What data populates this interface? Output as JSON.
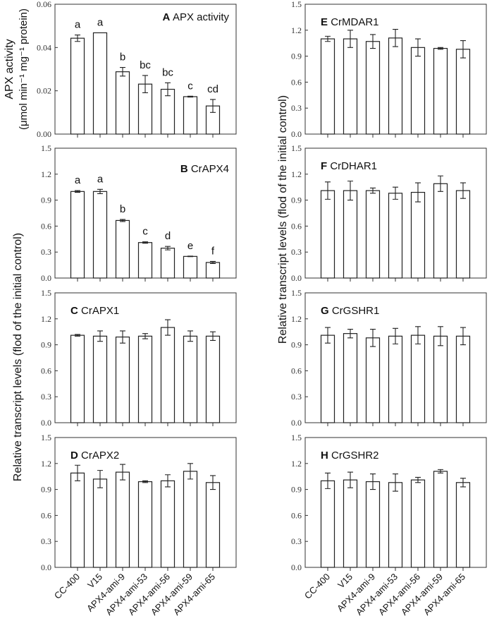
{
  "chart_data": [
    {
      "id": "A",
      "type": "bar",
      "panel_letter": "A",
      "title": "APX activity",
      "ylabel_lines": [
        "APX activity",
        "(μmol min⁻¹ mg⁻¹ protein)"
      ],
      "ylim": [
        0,
        0.06
      ],
      "yticks": [
        "0.00",
        "0.02",
        "0.04",
        "0.06"
      ],
      "categories": [
        "CC-400",
        "V15",
        "APX4-ami-9",
        "APX4-ami-53",
        "APX4-ami-56",
        "APX4-ami-59",
        "APX4-ami-65"
      ],
      "values": [
        0.0443,
        0.0468,
        0.0288,
        0.0231,
        0.0207,
        0.0173,
        0.013
      ],
      "errors": [
        0.0015,
        0,
        0.002,
        0.004,
        0.003,
        0.0002,
        0.003
      ],
      "letters": [
        "a",
        "a",
        "b",
        "bc",
        "bc",
        "c",
        "cd"
      ]
    },
    {
      "id": "B",
      "type": "bar",
      "panel_letter": "B",
      "title": "CrAPX4",
      "ylim": [
        0,
        1.5
      ],
      "yticks": [
        "0.0",
        "0.3",
        "0.6",
        "0.9",
        "1.2",
        "1.5"
      ],
      "values": [
        1.0,
        1.0,
        0.665,
        0.41,
        0.345,
        0.25,
        0.18
      ],
      "errors": [
        0.01,
        0.025,
        0.012,
        0.008,
        0.02,
        0.003,
        0.012
      ],
      "letters": [
        "a",
        "a",
        "b",
        "c",
        "d",
        "e",
        "f"
      ]
    },
    {
      "id": "C",
      "type": "bar",
      "panel_letter": "C",
      "title": "CrAPX1",
      "ylim": [
        0,
        1.5
      ],
      "yticks": [
        "0.0",
        "0.3",
        "0.6",
        "0.9",
        "1.2",
        "1.5"
      ],
      "values": [
        1.01,
        1.0,
        0.99,
        1.0,
        1.1,
        1.0,
        1.0
      ],
      "errors": [
        0.01,
        0.06,
        0.07,
        0.03,
        0.09,
        0.06,
        0.05
      ]
    },
    {
      "id": "D",
      "type": "bar",
      "panel_letter": "D",
      "title": "CrAPX2",
      "ylim": [
        0,
        1.5
      ],
      "yticks": [
        "0.0",
        "0.3",
        "0.6",
        "0.9",
        "1.2",
        "1.5"
      ],
      "values": [
        1.09,
        1.02,
        1.1,
        0.99,
        1.0,
        1.11,
        0.98
      ],
      "errors": [
        0.09,
        0.1,
        0.09,
        0.01,
        0.07,
        0.09,
        0.08
      ]
    },
    {
      "id": "E",
      "type": "bar",
      "panel_letter": "E",
      "title": "CrMDAR1",
      "ylim": [
        0,
        1.5
      ],
      "yticks": [
        "0.0",
        "0.3",
        "0.6",
        "0.9",
        "1.2",
        "1.5"
      ],
      "values": [
        1.1,
        1.1,
        1.07,
        1.11,
        1.0,
        0.99,
        0.98
      ],
      "errors": [
        0.03,
        0.1,
        0.08,
        0.1,
        0.1,
        0.01,
        0.1
      ]
    },
    {
      "id": "F",
      "type": "bar",
      "panel_letter": "F",
      "title": "CrDHAR1",
      "ylim": [
        0,
        1.5
      ],
      "yticks": [
        "0.0",
        "0.3",
        "0.6",
        "0.9",
        "1.2",
        "1.5"
      ],
      "values": [
        1.01,
        1.01,
        1.01,
        0.98,
        0.99,
        1.09,
        1.01
      ],
      "errors": [
        0.1,
        0.11,
        0.03,
        0.07,
        0.11,
        0.09,
        0.09
      ]
    },
    {
      "id": "G",
      "type": "bar",
      "panel_letter": "G",
      "title": "CrGSHR1",
      "ylim": [
        0,
        1.5
      ],
      "yticks": [
        "0.0",
        "0.3",
        "0.6",
        "0.9",
        "1.2",
        "1.5"
      ],
      "values": [
        1.01,
        1.03,
        0.98,
        1.0,
        1.01,
        1.0,
        1.0
      ],
      "errors": [
        0.09,
        0.05,
        0.1,
        0.09,
        0.1,
        0.11,
        0.1
      ]
    },
    {
      "id": "H",
      "type": "bar",
      "panel_letter": "H",
      "title": "CrGSHR2",
      "ylim": [
        0,
        1.5
      ],
      "yticks": [
        "0.0",
        "0.3",
        "0.6",
        "0.9",
        "1.2",
        "1.5"
      ],
      "values": [
        1.0,
        1.01,
        0.99,
        0.98,
        1.01,
        1.11,
        0.98
      ],
      "errors": [
        0.09,
        0.09,
        0.09,
        0.1,
        0.03,
        0.02,
        0.05
      ]
    }
  ],
  "categories": [
    "CC-400",
    "V15",
    "APX4-ami-9",
    "APX4-ami-53",
    "APX4-ami-56",
    "APX4-ami-59",
    "APX4-ami-65"
  ],
  "shared_ylabel": "Relative transcript levels (flod of the initial control)"
}
